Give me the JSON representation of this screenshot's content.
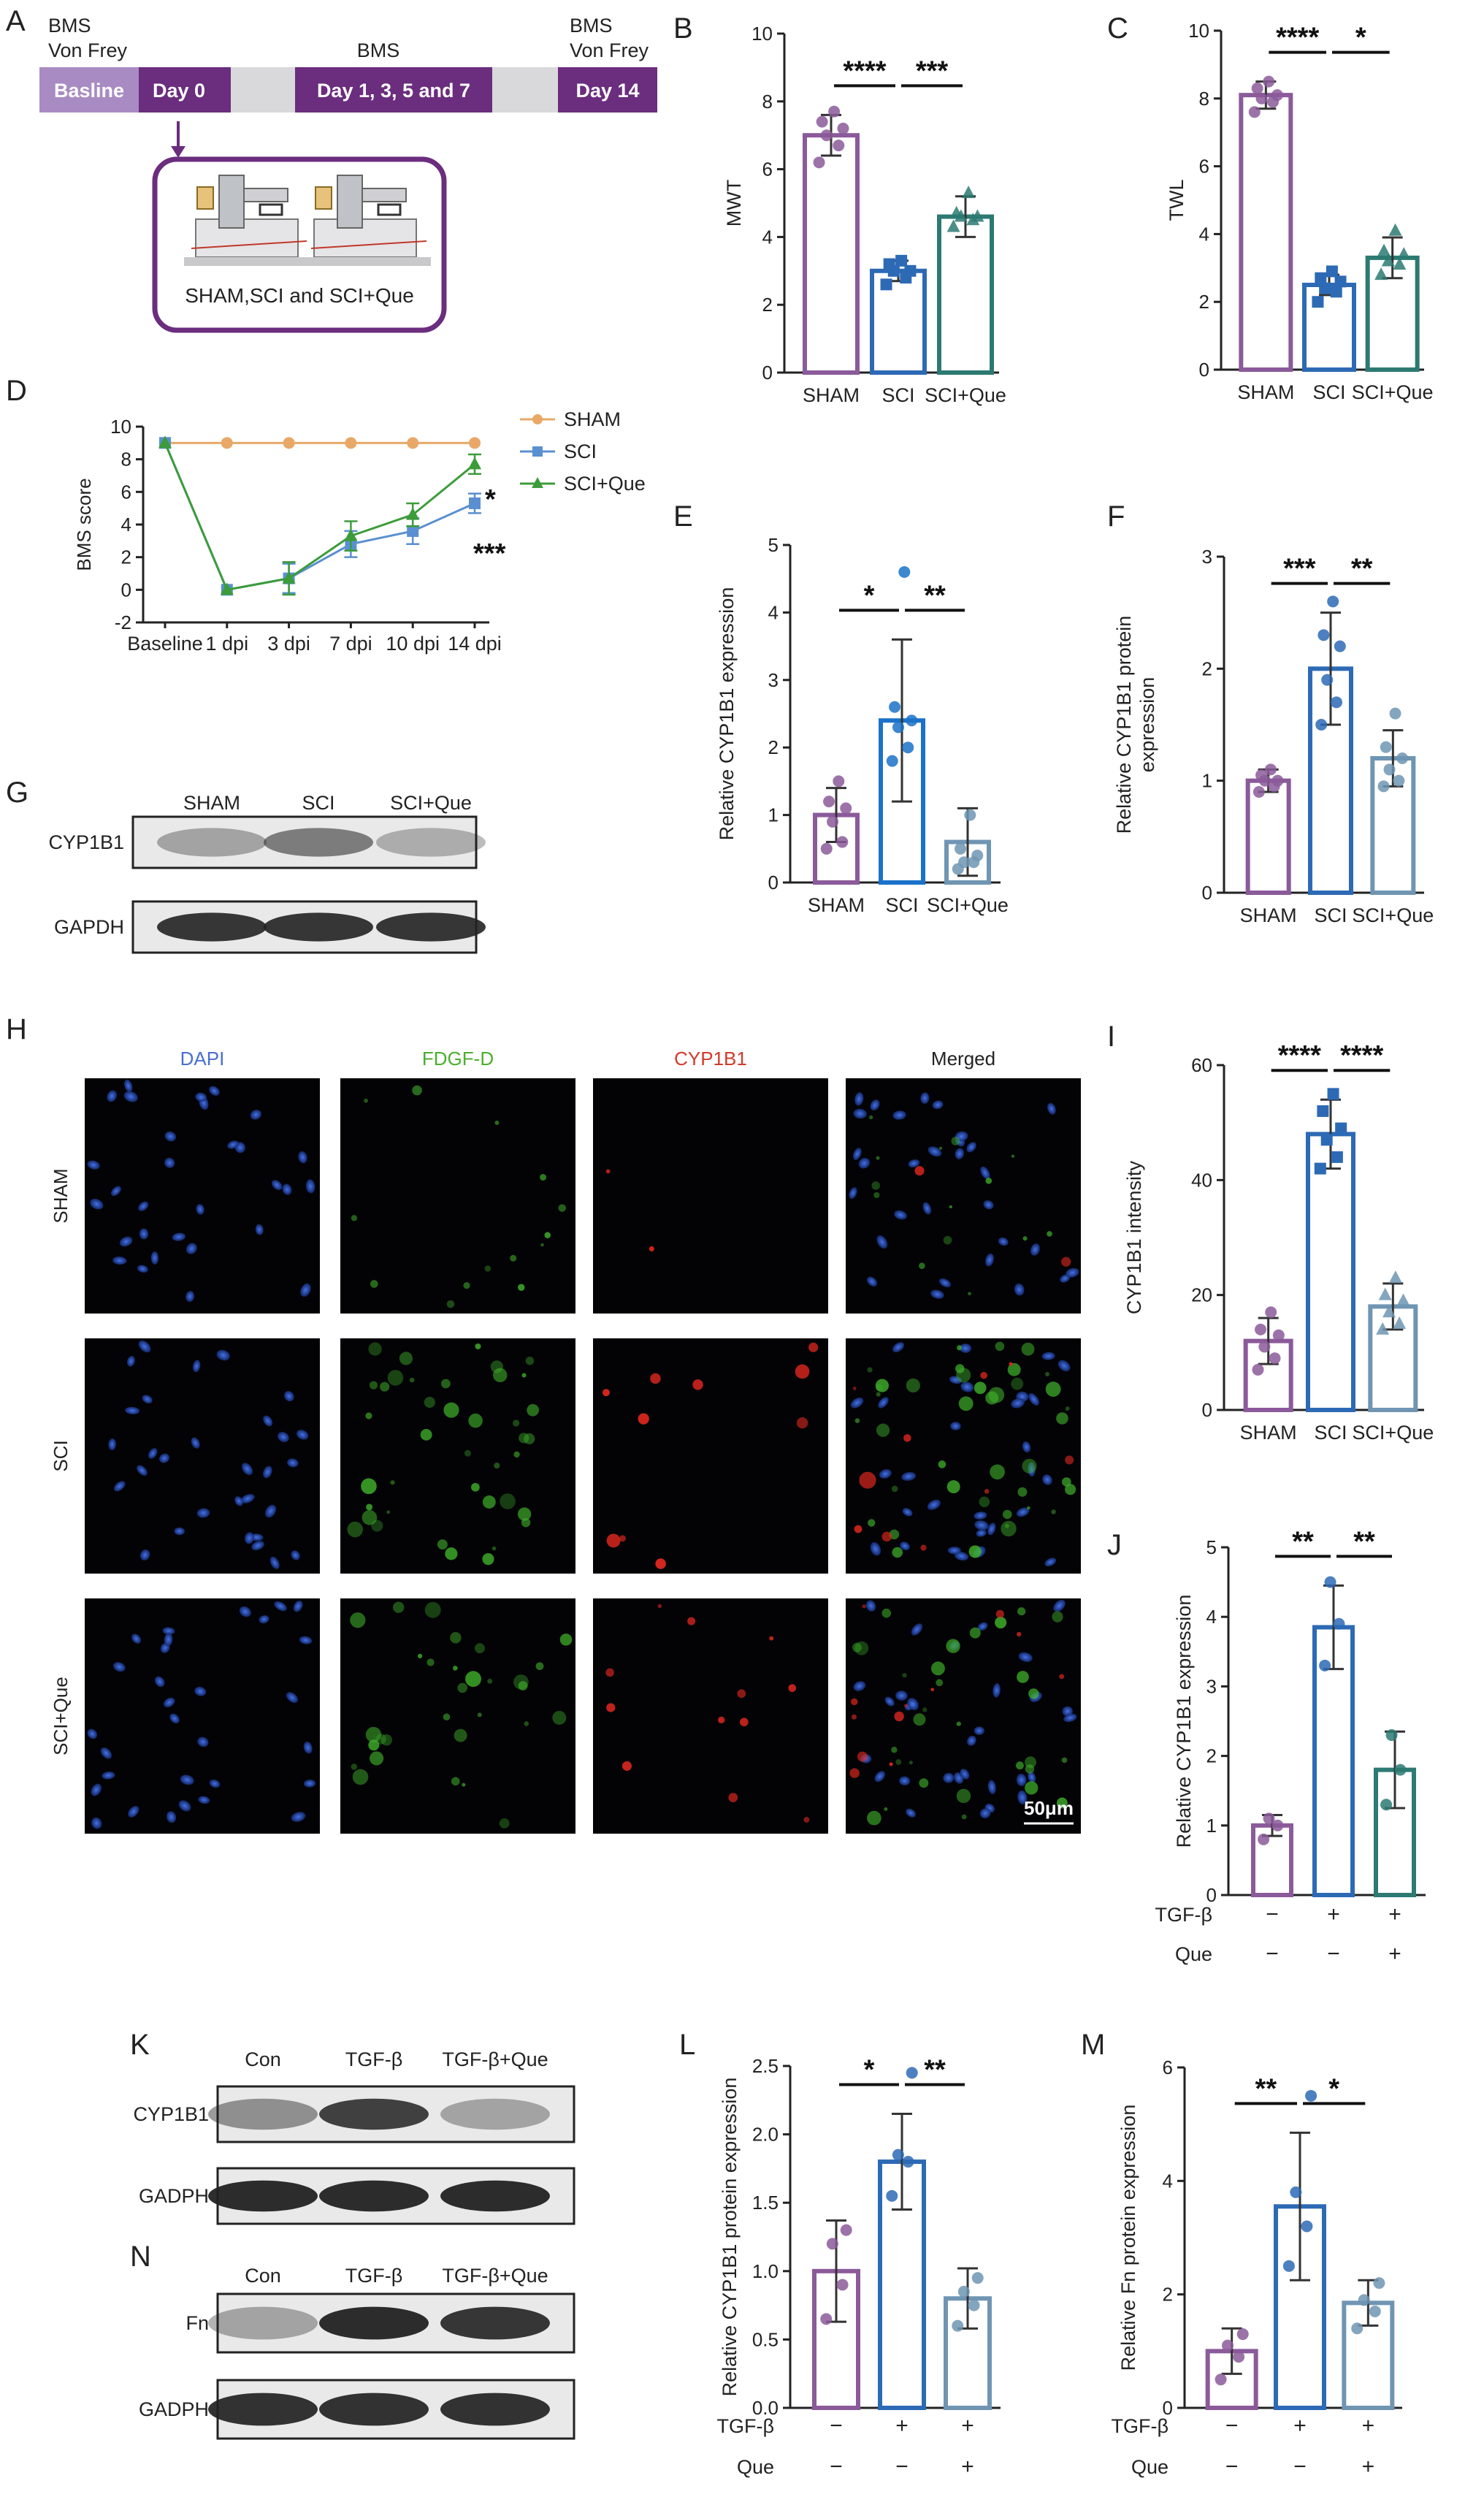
{
  "panel_letters": {
    "A": "A",
    "B": "B",
    "C": "C",
    "D": "D",
    "E": "E",
    "F": "F",
    "G": "G",
    "H": "H",
    "I": "I",
    "J": "J",
    "K": "K",
    "L": "L",
    "M": "M",
    "N": "N"
  },
  "timeline": {
    "top_labels": [
      "BMS\nVon Frey",
      "BMS",
      "BMS\nVon Frey"
    ],
    "segments": [
      "Basline",
      "Day 0",
      "Day 1, 3, 5 and 7",
      "Day 14"
    ],
    "box_caption": "SHAM,SCI and SCI+Que",
    "colors": {
      "light": "#a98bc3",
      "dark": "#6b2d7e",
      "gap": "#d9d9dc"
    }
  },
  "colors": {
    "sham": "#8b5a9a",
    "sci": "#2d6ab5",
    "que": "#2c7a72",
    "sci_e": "#1b72c9",
    "que_e": "#6f95b3"
  },
  "chart_data": [
    {
      "id": "B",
      "type": "bar",
      "categories": [
        "SHAM",
        "SCI",
        "SCI+Que"
      ],
      "values": [
        7.0,
        3.0,
        4.6
      ],
      "errors": [
        0.6,
        0.3,
        0.6
      ],
      "points": [
        [
          6.2,
          6.7,
          7.0,
          7.2,
          7.4,
          7.7
        ],
        [
          2.6,
          2.8,
          3.0,
          3.0,
          3.2,
          3.3
        ],
        [
          4.3,
          4.5,
          4.6,
          4.6,
          4.7,
          5.3
        ]
      ],
      "ylabel": "MWT",
      "ylim": [
        0,
        10
      ],
      "yticks": [
        0,
        2,
        4,
        6,
        8,
        10
      ],
      "sig": [
        "****",
        "***"
      ]
    },
    {
      "id": "C",
      "type": "bar",
      "categories": [
        "SHAM",
        "SCI",
        "SCI+Que"
      ],
      "values": [
        8.1,
        2.5,
        3.3
      ],
      "errors": [
        0.4,
        0.3,
        0.6
      ],
      "points": [
        [
          7.6,
          7.9,
          8.0,
          8.1,
          8.3,
          8.5
        ],
        [
          2.0,
          2.3,
          2.4,
          2.6,
          2.7,
          2.9
        ],
        [
          2.8,
          3.1,
          3.2,
          3.4,
          3.5,
          4.1
        ]
      ],
      "ylabel": "TWL",
      "ylim": [
        0,
        10
      ],
      "yticks": [
        0,
        2,
        4,
        6,
        8,
        10
      ],
      "sig": [
        "****",
        "*"
      ]
    },
    {
      "id": "D",
      "type": "line",
      "categories": [
        "Baseline",
        "1 dpi",
        "3 dpi",
        "7 dpi",
        "10 dpi",
        "14 dpi"
      ],
      "series": [
        {
          "name": "SHAM",
          "values": [
            9,
            9,
            9,
            9,
            9,
            9
          ],
          "errors": [
            0,
            0,
            0,
            0,
            0,
            0
          ]
        },
        {
          "name": "SCI",
          "values": [
            9,
            0,
            0.7,
            2.8,
            3.6,
            5.3
          ],
          "errors": [
            0,
            0,
            0.9,
            0.8,
            0.8,
            0.6
          ]
        },
        {
          "name": "SCI+Que",
          "values": [
            9,
            0,
            0.7,
            3.3,
            4.6,
            7.7
          ],
          "errors": [
            0,
            0,
            1.0,
            0.9,
            0.7,
            0.6
          ]
        }
      ],
      "ylabel": "BMS score",
      "ylim": [
        0,
        10
      ],
      "yticks": [
        -2,
        0,
        2,
        4,
        6,
        8,
        10
      ],
      "sig": [
        "*",
        "***"
      ],
      "legend": "top-right"
    },
    {
      "id": "E",
      "type": "bar",
      "categories": [
        "SHAM",
        "SCI",
        "SCI+Que"
      ],
      "values": [
        1.0,
        2.4,
        0.6
      ],
      "errors": [
        0.4,
        1.2,
        0.5
      ],
      "points": [
        [
          0.5,
          0.6,
          0.9,
          1.1,
          1.2,
          1.5
        ],
        [
          1.8,
          2.0,
          2.3,
          2.4,
          2.6,
          4.6
        ],
        [
          0.2,
          0.3,
          0.3,
          0.4,
          0.5,
          1.0
        ]
      ],
      "ylabel": "Relative CYP1B1 expression",
      "ylim": [
        0,
        5
      ],
      "yticks": [
        0,
        1,
        2,
        3,
        4,
        5
      ],
      "sig": [
        "*",
        "**"
      ]
    },
    {
      "id": "F",
      "type": "bar",
      "categories": [
        "SHAM",
        "SCI",
        "SCI+Que"
      ],
      "values": [
        1.0,
        2.0,
        1.2
      ],
      "errors": [
        0.1,
        0.5,
        0.25
      ],
      "points": [
        [
          0.9,
          0.95,
          1.0,
          1.0,
          1.05,
          1.1
        ],
        [
          1.5,
          1.7,
          1.9,
          2.2,
          2.3,
          2.6
        ],
        [
          0.95,
          1.0,
          1.1,
          1.2,
          1.3,
          1.6
        ]
      ],
      "ylabel": "Relative CYP1B1 protein\nexpression",
      "ylim": [
        0,
        3
      ],
      "yticks": [
        0,
        1,
        2,
        3
      ],
      "sig": [
        "***",
        "**"
      ]
    },
    {
      "id": "I",
      "type": "bar",
      "categories": [
        "SHAM",
        "SCI",
        "SCI+Que"
      ],
      "values": [
        12,
        48,
        18
      ],
      "errors": [
        4,
        6,
        4
      ],
      "points": [
        [
          7,
          9,
          11,
          13,
          14,
          17
        ],
        [
          42,
          44,
          47,
          49,
          52,
          55
        ],
        [
          14,
          15,
          17,
          19,
          20,
          23
        ]
      ],
      "ylabel": "CYP1B1 intensity",
      "ylim": [
        0,
        60
      ],
      "yticks": [
        0,
        20,
        40,
        60
      ],
      "sig": [
        "****",
        "****"
      ]
    },
    {
      "id": "J",
      "type": "bar",
      "categories": [
        "",
        "",
        ""
      ],
      "values": [
        1.0,
        3.85,
        1.8
      ],
      "errors": [
        0.15,
        0.6,
        0.55
      ],
      "points": [
        [
          0.8,
          1.0,
          1.1
        ],
        [
          3.3,
          3.9,
          4.5
        ],
        [
          1.3,
          1.8,
          2.3
        ]
      ],
      "ylabel": "Relative CYP1B1 expression",
      "ylim": [
        0,
        5
      ],
      "yticks": [
        0,
        1,
        2,
        3,
        4,
        5
      ],
      "sig": [
        "**",
        "**"
      ],
      "treatments": [
        {
          "label": "TGF-β",
          "signs": [
            "−",
            "+",
            "+"
          ]
        },
        {
          "label": "Que",
          "signs": [
            "−",
            "−",
            "+"
          ]
        }
      ]
    },
    {
      "id": "L",
      "type": "bar",
      "categories": [
        "",
        "",
        ""
      ],
      "values": [
        1.0,
        1.8,
        0.8
      ],
      "errors": [
        0.37,
        0.35,
        0.22
      ],
      "points": [
        [
          0.65,
          0.9,
          1.2,
          1.3
        ],
        [
          1.55,
          1.8,
          1.85,
          2.45
        ],
        [
          0.6,
          0.75,
          0.85,
          0.95
        ]
      ],
      "ylabel": "Relative CYP1B1 protein expression",
      "ylim": [
        0,
        2.5
      ],
      "yticks": [
        0.0,
        0.5,
        1.0,
        1.5,
        2.0,
        2.5
      ],
      "sig": [
        "*",
        "**"
      ],
      "treatments": [
        {
          "label": "TGF-β",
          "signs": [
            "−",
            "+",
            "+"
          ]
        },
        {
          "label": "Que",
          "signs": [
            "−",
            "−",
            "+"
          ]
        }
      ]
    },
    {
      "id": "M",
      "type": "bar",
      "categories": [
        "",
        "",
        ""
      ],
      "values": [
        1.0,
        3.55,
        1.85
      ],
      "errors": [
        0.4,
        1.3,
        0.4
      ],
      "points": [
        [
          0.5,
          0.9,
          1.1,
          1.3
        ],
        [
          2.5,
          3.2,
          3.8,
          5.5
        ],
        [
          1.4,
          1.7,
          1.9,
          2.2
        ]
      ],
      "ylabel": "Relative Fn protein expression",
      "ylim": [
        0,
        6
      ],
      "yticks": [
        0,
        2,
        4,
        6
      ],
      "sig": [
        "**",
        "*"
      ],
      "treatments": [
        {
          "label": "TGF-β",
          "signs": [
            "−",
            "+",
            "+"
          ]
        },
        {
          "label": "Que",
          "signs": [
            "−",
            "−",
            "+"
          ]
        }
      ]
    }
  ],
  "blots": {
    "G": {
      "cols": [
        "SHAM",
        "SCI",
        "SCI+Que"
      ],
      "rows": [
        "CYP1B1",
        "GAPDH"
      ]
    },
    "K": {
      "cols": [
        "Con",
        "TGF-β",
        "TGF-β+Que"
      ],
      "rows": [
        "CYP1B1",
        "GADPH"
      ]
    },
    "N": {
      "cols": [
        "Con",
        "TGF-β",
        "TGF-β+Que"
      ],
      "rows": [
        "Fn",
        "GADPH"
      ]
    }
  },
  "micro": {
    "cols": [
      "DAPI",
      "FDGF-D",
      "CYP1B1",
      "Merged"
    ],
    "rows": [
      "SHAM",
      "SCI",
      "SCI+Que"
    ],
    "scale": "50μm"
  }
}
